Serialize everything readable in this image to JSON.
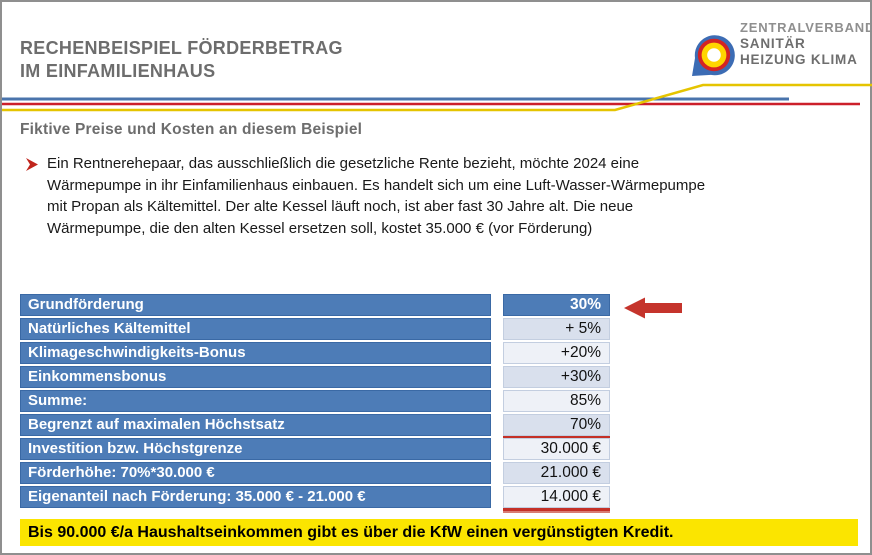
{
  "header": {
    "title_line1": "RECHENBEISPIEL FÖRDERBETRAG",
    "title_line2": "IM EINFAMILIENHAUS"
  },
  "logo": {
    "line1": "ZENTRALVERBAND",
    "line2": "SANITÄR",
    "line3": "HEIZUNG KLIMA"
  },
  "intro": {
    "subtitle": "Fiktive Preise und Kosten an diesem Beispiel",
    "bullet_lines": [
      "Ein Rentnerehepaar, das ausschließlich die gesetzliche Rente bezieht, möchte 2024 eine",
      "Wärmepumpe in ihr Einfamilienhaus einbauen. Es handelt sich um eine Luft-Wasser-Wärmepumpe",
      "mit Propan als Kältemittel. Der alte Kessel läuft noch, ist aber fast 30 Jahre alt. Die neue",
      "Wärmepumpe, die den alten Kessel ersetzen soll, kostet 35.000 € (vor Förderung)"
    ]
  },
  "table": {
    "rows": [
      {
        "label": "Grundförderung",
        "value": "30%",
        "marked": false
      },
      {
        "label": "Natürliches Kältemittel",
        "value": "+ 5%",
        "marked": false
      },
      {
        "label": "Klimageschwindigkeits-Bonus",
        "value": "+20%",
        "marked": false
      },
      {
        "label": "Einkommensbonus",
        "value": "+30%",
        "marked": false
      },
      {
        "label": "Summe:",
        "value": "85%",
        "marked": false
      },
      {
        "label": "Begrenzt auf maximalen Höchstsatz",
        "value": "70%",
        "marked": true
      },
      {
        "label": "Investition bzw. Höchstgrenze",
        "value": "30.000 €",
        "marked": false
      },
      {
        "label": "Förderhöhe: 70%*30.000 €",
        "value": "21.000 €",
        "marked": false
      },
      {
        "label": "Eigenanteil nach Förderung: 35.000 € - 21.000 €",
        "value": "14.000 €",
        "marked": true
      }
    ]
  },
  "footer": {
    "note": "Bis 90.000 €/a Haushaltseinkommen gibt es über die KfW einen vergünstigten Kredit."
  },
  "colors": {
    "table_blue": "#4d7cb7",
    "table_blue_border": "#3a69a5",
    "value_shade_dark": "#d9e0ed",
    "value_shade_light": "#eef1f7",
    "accent_red": "#c43027",
    "line_blue": "#4a74ac",
    "line_red": "#cc1f2a",
    "line_yellow": "#e5c400",
    "footer_yellow": "#fbe500",
    "title_gray": "#6d6d6d"
  }
}
